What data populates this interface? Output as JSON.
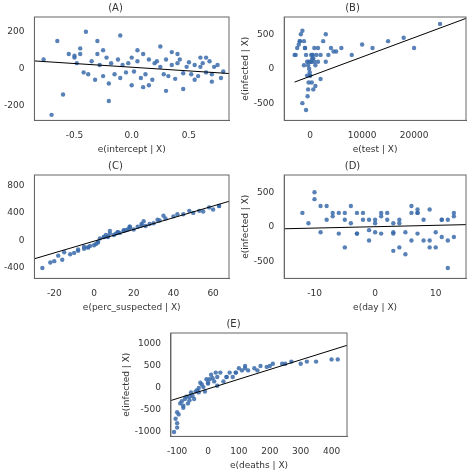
{
  "chart_data": [
    {
      "type": "scatter",
      "title": "(A)",
      "xlabel": "e(intercept | X)",
      "xlim": [
        -0.85,
        0.85
      ],
      "ylim": [
        -280,
        280
      ],
      "xticks": [
        -0.5,
        {
          "value": 0.0,
          "label": "0.0"
        },
        0.5
      ],
      "yticks": [
        -200,
        0,
        200
      ],
      "grid": false,
      "series": [
        {
          "type": "scatter",
          "color": "#3a6baa",
          "x": [
            -0.77,
            -0.65,
            -0.6,
            -0.55,
            -0.5,
            -0.48,
            -0.45,
            -0.42,
            -0.38,
            -0.35,
            -0.32,
            -0.3,
            -0.28,
            -0.25,
            -0.25,
            -0.22,
            -0.2,
            -0.18,
            -0.15,
            -0.12,
            -0.1,
            -0.08,
            -0.05,
            -0.03,
            0.0,
            0.02,
            0.05,
            0.08,
            0.1,
            0.12,
            0.15,
            0.18,
            0.2,
            0.22,
            0.25,
            0.28,
            0.3,
            0.32,
            0.35,
            0.38,
            0.4,
            0.42,
            0.45,
            0.48,
            0.5,
            0.52,
            0.55,
            0.58,
            0.6,
            0.62,
            0.65,
            0.68,
            0.7,
            0.72,
            0.75,
            0.78,
            0.8,
            -0.7,
            -0.4,
            -0.3,
            -0.1,
            0.1,
            0.25,
            0.45,
            0.6,
            0.0,
            0.35,
            0.55,
            -0.5,
            -0.2,
            0.05,
            0.3,
            0.65,
            -0.45,
            0.15,
            0.4,
            0.7
          ],
          "values": [
            50,
            150,
            -140,
            80,
            60,
            30,
            110,
            -20,
            -30,
            40,
            -60,
            80,
            20,
            -40,
            100,
            60,
            -80,
            30,
            -30,
            50,
            -50,
            20,
            -20,
            30,
            60,
            -15,
            40,
            -50,
            80,
            -30,
            50,
            -60,
            30,
            40,
            10,
            -30,
            50,
            -40,
            20,
            -55,
            30,
            50,
            -25,
            10,
            35,
            -30,
            20,
            -40,
            10,
            30,
            -20,
            40,
            -30,
            10,
            20,
            -50,
            -15,
            -250,
            200,
            150,
            180,
            -100,
            120,
            -110,
            60,
            -90,
            90,
            -60,
            70,
            -175,
            100,
            -120,
            60,
            80,
            -90,
            80,
            -70
          ]
        },
        {
          "type": "line",
          "color": "black",
          "x": [
            -0.85,
            0.85
          ],
          "values": [
            42,
            -26
          ]
        }
      ]
    },
    {
      "type": "scatter",
      "title": "(B)",
      "xlabel": "e(test | X)",
      "ylabel": "e(infected | X)",
      "xlim": [
        -5000,
        30000
      ],
      "ylim": [
        -750,
        750
      ],
      "xticks": [
        0,
        10000,
        20000
      ],
      "yticks": [
        -500,
        0,
        500
      ],
      "grid": false,
      "series": [
        {
          "type": "scatter",
          "color": "#3a6baa",
          "x": [
            -3000,
            -2500,
            -2200,
            -2000,
            -1800,
            -1500,
            -1200,
            -1000,
            -800,
            -600,
            -400,
            -300,
            -200,
            -100,
            0,
            100,
            200,
            400,
            600,
            800,
            1000,
            1500,
            2000,
            3000,
            4000,
            5000,
            6000,
            8000,
            10000,
            12000,
            15000,
            18000,
            20000,
            25000,
            -1500,
            -800,
            -500,
            -300,
            0,
            300,
            600,
            1000,
            2000,
            3500,
            -2000,
            -1000,
            500,
            1500,
            3000,
            200,
            800,
            -400,
            -600,
            -1200,
            -2800,
            400,
            1200,
            2500,
            4500,
            200
          ],
          "values": [
            200,
            300,
            350,
            400,
            500,
            550,
            400,
            300,
            200,
            100,
            50,
            100,
            0,
            -50,
            -100,
            100,
            200,
            200,
            150,
            100,
            50,
            300,
            200,
            500,
            300,
            250,
            300,
            200,
            350,
            300,
            400,
            450,
            300,
            650,
            -500,
            -600,
            -400,
            -200,
            -100,
            -200,
            -300,
            -250,
            -150,
            200,
            400,
            300,
            200,
            100,
            100,
            100,
            300,
            -300,
            -100,
            50,
            200,
            150,
            200,
            400,
            250,
            100
          ]
        },
        {
          "type": "line",
          "color": "black",
          "x": [
            -3000,
            30000
          ],
          "values": [
            -194,
            730
          ]
        }
      ]
    },
    {
      "type": "scatter",
      "title": "(C)",
      "xlabel": "e(perc_suspected | X)",
      "xlim": [
        -30,
        68
      ],
      "ylim": [
        -550,
        950
      ],
      "xticks": [
        -20,
        0,
        20,
        40,
        60
      ],
      "yticks": [
        -400,
        0,
        400,
        800
      ],
      "grid": false,
      "series": [
        {
          "type": "scatter",
          "color": "#3a6baa",
          "x": [
            -26,
            -20,
            -18,
            -15,
            -12,
            -10,
            -8,
            -5,
            -3,
            -2,
            0,
            1,
            2,
            3,
            5,
            6,
            7,
            8,
            10,
            11,
            12,
            13,
            15,
            16,
            17,
            18,
            20,
            22,
            24,
            26,
            28,
            30,
            33,
            36,
            40,
            45,
            50,
            55,
            60,
            63,
            -16,
            -8,
            -3,
            2,
            7,
            12,
            18,
            24,
            32,
            42,
            53,
            63,
            -22,
            -5,
            5,
            15,
            25,
            35,
            48,
            58,
            8,
            18
          ],
          "values": [
            -400,
            -300,
            -220,
            -170,
            -200,
            -180,
            -130,
            -120,
            -100,
            -80,
            -70,
            -50,
            -20,
            30,
            50,
            80,
            60,
            100,
            80,
            100,
            120,
            110,
            140,
            150,
            160,
            180,
            160,
            200,
            220,
            210,
            240,
            250,
            290,
            320,
            350,
            380,
            400,
            420,
            450,
            500,
            -280,
            -150,
            -100,
            -30,
            50,
            120,
            200,
            240,
            300,
            380,
            430,
            500,
            -320,
            -90,
            50,
            150,
            280,
            360,
            430,
            480,
            140,
            200
          ]
        },
        {
          "type": "line",
          "color": "black",
          "x": [
            -30,
            68
          ],
          "values": [
            -265,
            568
          ]
        }
      ]
    },
    {
      "type": "scatter",
      "title": "(D)",
      "xlabel": "e(day | X)",
      "ylabel": "e(infected | X)",
      "xlim": [
        -15,
        15
      ],
      "ylim": [
        -750,
        750
      ],
      "xticks": [
        -10,
        0,
        10
      ],
      "yticks": [
        -500,
        0,
        500
      ],
      "grid": false,
      "series": [
        {
          "type": "scatter",
          "color": "#3a6baa",
          "x": [
            -12,
            -11,
            -10,
            -9,
            -8,
            -8,
            -7,
            -6,
            -5,
            -5,
            -4,
            -4,
            -3,
            -3,
            -2,
            -2,
            -1,
            -1,
            0,
            0,
            1,
            1,
            2,
            2,
            3,
            3,
            4,
            4,
            5,
            5,
            6,
            6,
            7,
            7,
            8,
            8,
            9,
            9,
            10,
            10,
            11,
            11,
            12,
            12,
            13,
            13,
            -6,
            -3,
            0,
            3,
            6,
            9,
            12,
            -9,
            -5,
            -1,
            3,
            7,
            11,
            -7,
            1,
            7,
            13,
            -10,
            4
          ],
          "values": [
            200,
            50,
            500,
            -80,
            300,
            100,
            200,
            -100,
            100,
            200,
            50,
            300,
            -100,
            200,
            200,
            100,
            -50,
            100,
            50,
            -80,
            150,
            200,
            200,
            100,
            50,
            -100,
            -300,
            50,
            -400,
            -80,
            -200,
            200,
            -100,
            200,
            -200,
            100,
            -200,
            -300,
            -300,
            -80,
            -150,
            100,
            -200,
            -600,
            -150,
            150,
            200,
            -100,
            100,
            -80,
            300,
            250,
            100,
            300,
            -300,
            -200,
            -350,
            200,
            100,
            150,
            -100,
            250,
            200,
            400,
            100
          ]
        },
        {
          "type": "line",
          "color": "black",
          "x": [
            -15,
            15
          ],
          "values": [
            -30,
            30
          ]
        }
      ]
    },
    {
      "type": "scatter",
      "title": "(E)",
      "xlabel": "e(deaths | X)",
      "ylabel": "e(infected | X)",
      "xlim": [
        -120,
        450
      ],
      "ylim": [
        -1100,
        1250
      ],
      "xticks": [
        -100,
        0,
        100,
        200,
        300,
        400
      ],
      "yticks": [
        -1000,
        -500,
        0,
        500,
        1000
      ],
      "grid": false,
      "series": [
        {
          "type": "scatter",
          "color": "#3a6baa",
          "x": [
            -110,
            -105,
            -100,
            -100,
            -95,
            -90,
            -85,
            -80,
            -75,
            -70,
            -65,
            -60,
            -55,
            -50,
            -45,
            -40,
            -35,
            -30,
            -25,
            -20,
            -15,
            -10,
            -5,
            0,
            5,
            10,
            15,
            20,
            25,
            30,
            40,
            50,
            60,
            70,
            80,
            90,
            100,
            110,
            120,
            130,
            150,
            170,
            190,
            210,
            240,
            270,
            300,
            350,
            420,
            -100,
            -80,
            -60,
            -30,
            0,
            30,
            60,
            90,
            120,
            160,
            200,
            250,
            320,
            400
          ],
          "values": [
            -1000,
            -700,
            -550,
            -800,
            -600,
            -350,
            -300,
            -450,
            -250,
            -200,
            -350,
            -280,
            -100,
            -180,
            -250,
            -80,
            -50,
            0,
            120,
            80,
            20,
            -80,
            200,
            100,
            200,
            300,
            220,
            150,
            350,
            250,
            350,
            150,
            250,
            350,
            250,
            350,
            450,
            400,
            500,
            400,
            450,
            500,
            480,
            550,
            550,
            600,
            550,
            600,
            650,
            -900,
            -400,
            -200,
            -100,
            120,
            50,
            250,
            350,
            450,
            400,
            500,
            550,
            600,
            650
          ]
        },
        {
          "type": "line",
          "color": "black",
          "x": [
            -120,
            450
          ],
          "values": [
            -284,
            970
          ]
        }
      ]
    }
  ]
}
